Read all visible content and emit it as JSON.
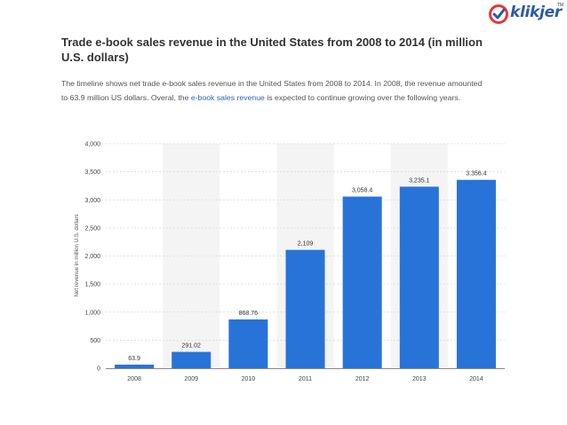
{
  "brand": {
    "name": "klikjer",
    "tm": "TM",
    "mark_color": "#e53935",
    "text_color": "#2b5aa8"
  },
  "header": {
    "title": "Trade e-book sales revenue in the United States from 2008 to 2014 (in million U.S. dollars)"
  },
  "description": {
    "part1": "The timeline shows net trade e-book sales revenue in the United States from 2008 to 2014. In 2008, the revenue amounted to 63.9 million US dollars. Overal, the ",
    "link": "e-book sales revenue",
    "part2": " is expected to continue growing over the following years."
  },
  "chart_data": {
    "type": "bar",
    "categories": [
      "2008",
      "2009",
      "2010",
      "2011",
      "2012",
      "2013",
      "2014"
    ],
    "values": [
      63.9,
      291.02,
      868.76,
      2109,
      3058.4,
      3235.1,
      3356.4
    ],
    "value_labels": [
      "63.9",
      "291.02",
      "868.76",
      "2,109",
      "3,058.4",
      "3,235.1",
      "3,356.4"
    ],
    "ylabel": "Net revenue in million U.S. dollars",
    "xlabel": "",
    "ylim": [
      0,
      4000
    ],
    "yticks": [
      0,
      500,
      1000,
      1500,
      2000,
      2500,
      3000,
      3500,
      4000
    ],
    "ytick_labels": [
      "0",
      "500",
      "1,000",
      "1,500",
      "2,000",
      "2,500",
      "3,000",
      "3,500",
      "4,000"
    ],
    "bar_color": "#2873d8",
    "band_color": "#f4f4f4",
    "grid": true
  }
}
